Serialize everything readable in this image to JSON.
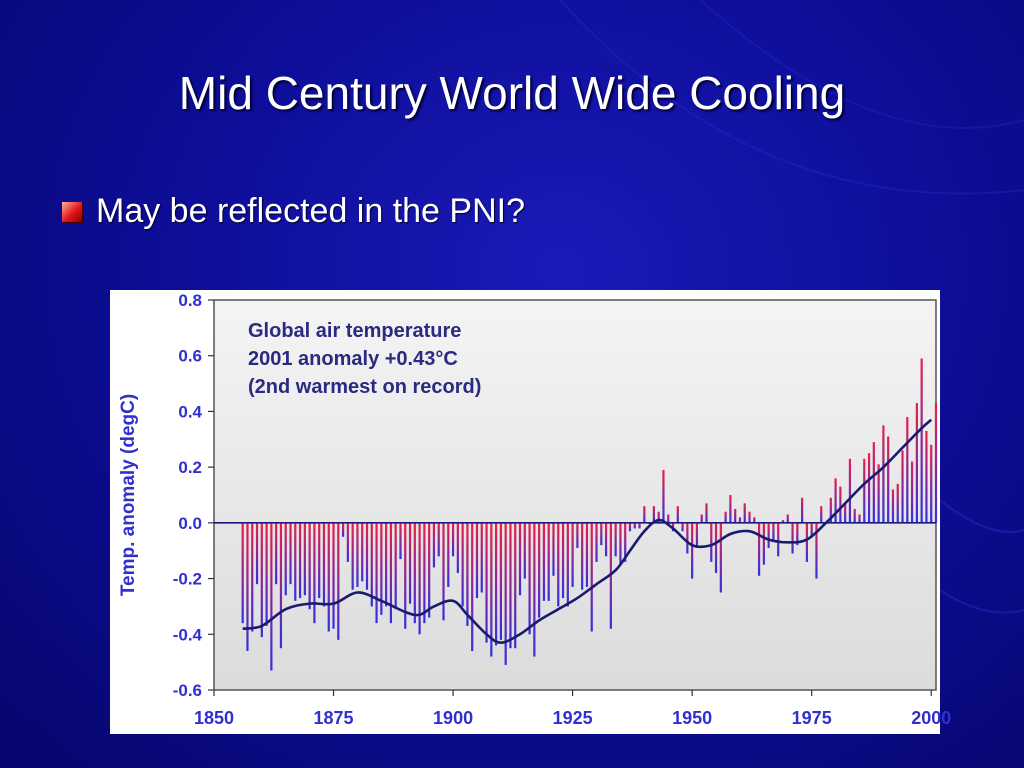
{
  "slide": {
    "title": "Mid Century World Wide Cooling",
    "bullet": "May be reflected in the PNI?"
  },
  "colors": {
    "background": "#0e0e9a",
    "bar_positive": "#e8204a",
    "bar_negative": "#3030e0",
    "smooth_line": "#1a1a70",
    "axis_label": "#3030d0",
    "plot_area": "#dcdcdc"
  },
  "chart_data": {
    "type": "bar",
    "ylabel": "Temp. anomaly (degC)",
    "ylim": [
      -0.6,
      0.8
    ],
    "xlim": [
      1850,
      2001
    ],
    "x_ticks": [
      "1850",
      "1875",
      "1900",
      "1925",
      "1950",
      "1975",
      "2000"
    ],
    "y_ticks": [
      "0.8",
      "0.6",
      "0.4",
      "0.2",
      "0.0",
      "-0.2",
      "-0.4",
      "-0.6"
    ],
    "annotation": [
      "Global air temperature",
      "2001 anomaly +0.43°C",
      "(2nd warmest on record)"
    ],
    "grid": false,
    "series": [
      {
        "kind": "annual_bars",
        "x": [
          1856,
          1857,
          1858,
          1859,
          1860,
          1861,
          1862,
          1863,
          1864,
          1865,
          1866,
          1867,
          1868,
          1869,
          1870,
          1871,
          1872,
          1873,
          1874,
          1875,
          1876,
          1877,
          1878,
          1879,
          1880,
          1881,
          1882,
          1883,
          1884,
          1885,
          1886,
          1887,
          1888,
          1889,
          1890,
          1891,
          1892,
          1893,
          1894,
          1895,
          1896,
          1897,
          1898,
          1899,
          1900,
          1901,
          1902,
          1903,
          1904,
          1905,
          1906,
          1907,
          1908,
          1909,
          1910,
          1911,
          1912,
          1913,
          1914,
          1915,
          1916,
          1917,
          1918,
          1919,
          1920,
          1921,
          1922,
          1923,
          1924,
          1925,
          1926,
          1927,
          1928,
          1929,
          1930,
          1931,
          1932,
          1933,
          1934,
          1935,
          1936,
          1937,
          1938,
          1939,
          1940,
          1941,
          1942,
          1943,
          1944,
          1945,
          1946,
          1947,
          1948,
          1949,
          1950,
          1951,
          1952,
          1953,
          1954,
          1955,
          1956,
          1957,
          1958,
          1959,
          1960,
          1961,
          1962,
          1963,
          1964,
          1965,
          1966,
          1967,
          1968,
          1969,
          1970,
          1971,
          1972,
          1973,
          1974,
          1975,
          1976,
          1977,
          1978,
          1979,
          1980,
          1981,
          1982,
          1983,
          1984,
          1985,
          1986,
          1987,
          1988,
          1989,
          1990,
          1991,
          1992,
          1993,
          1994,
          1995,
          1996,
          1997,
          1998,
          1999,
          2000,
          2001
        ],
        "values": [
          -0.36,
          -0.46,
          -0.39,
          -0.22,
          -0.41,
          -0.37,
          -0.53,
          -0.22,
          -0.45,
          -0.26,
          -0.22,
          -0.28,
          -0.27,
          -0.26,
          -0.31,
          -0.36,
          -0.27,
          -0.3,
          -0.39,
          -0.38,
          -0.42,
          -0.05,
          -0.14,
          -0.24,
          -0.23,
          -0.21,
          -0.24,
          -0.3,
          -0.36,
          -0.33,
          -0.3,
          -0.36,
          -0.31,
          -0.13,
          -0.38,
          -0.29,
          -0.36,
          -0.4,
          -0.36,
          -0.34,
          -0.16,
          -0.12,
          -0.35,
          -0.23,
          -0.12,
          -0.18,
          -0.3,
          -0.37,
          -0.46,
          -0.27,
          -0.25,
          -0.43,
          -0.48,
          -0.44,
          -0.42,
          -0.51,
          -0.45,
          -0.45,
          -0.26,
          -0.2,
          -0.4,
          -0.48,
          -0.34,
          -0.28,
          -0.28,
          -0.19,
          -0.3,
          -0.27,
          -0.3,
          -0.23,
          -0.09,
          -0.24,
          -0.23,
          -0.39,
          -0.14,
          -0.08,
          -0.12,
          -0.38,
          -0.12,
          -0.15,
          -0.14,
          -0.03,
          -0.02,
          -0.02,
          0.06,
          0.0,
          0.06,
          0.04,
          0.19,
          0.03,
          -0.03,
          0.06,
          -0.03,
          -0.11,
          -0.2,
          -0.09,
          0.03,
          0.07,
          -0.14,
          -0.18,
          -0.25,
          0.04,
          0.1,
          0.05,
          0.02,
          0.07,
          0.04,
          0.02,
          -0.19,
          -0.15,
          -0.09,
          -0.06,
          -0.12,
          0.01,
          0.03,
          -0.11,
          -0.08,
          0.09,
          -0.14,
          -0.05,
          -0.2,
          0.06,
          0.0,
          0.09,
          0.16,
          0.13,
          0.07,
          0.23,
          0.05,
          0.03,
          0.23,
          0.25,
          0.29,
          0.21,
          0.35,
          0.31,
          0.12,
          0.14,
          0.26,
          0.38,
          0.22,
          0.43,
          0.59,
          0.33,
          0.28,
          0.43
        ]
      },
      {
        "kind": "smoothed_curve",
        "x": [
          1856,
          1860,
          1865,
          1870,
          1875,
          1880,
          1885,
          1890,
          1893,
          1896,
          1900,
          1903,
          1907,
          1910,
          1914,
          1918,
          1922,
          1926,
          1930,
          1934,
          1937,
          1940,
          1943,
          1946,
          1950,
          1954,
          1958,
          1962,
          1966,
          1970,
          1974,
          1978,
          1982,
          1986,
          1990,
          1994,
          1998,
          2000
        ],
        "values": [
          -0.38,
          -0.37,
          -0.31,
          -0.29,
          -0.29,
          -0.25,
          -0.28,
          -0.32,
          -0.33,
          -0.3,
          -0.28,
          -0.33,
          -0.4,
          -0.43,
          -0.4,
          -0.35,
          -0.31,
          -0.27,
          -0.22,
          -0.17,
          -0.1,
          -0.03,
          0.01,
          -0.02,
          -0.08,
          -0.08,
          -0.04,
          -0.03,
          -0.06,
          -0.07,
          -0.06,
          0.0,
          0.07,
          0.14,
          0.2,
          0.27,
          0.34,
          0.37
        ]
      }
    ]
  }
}
